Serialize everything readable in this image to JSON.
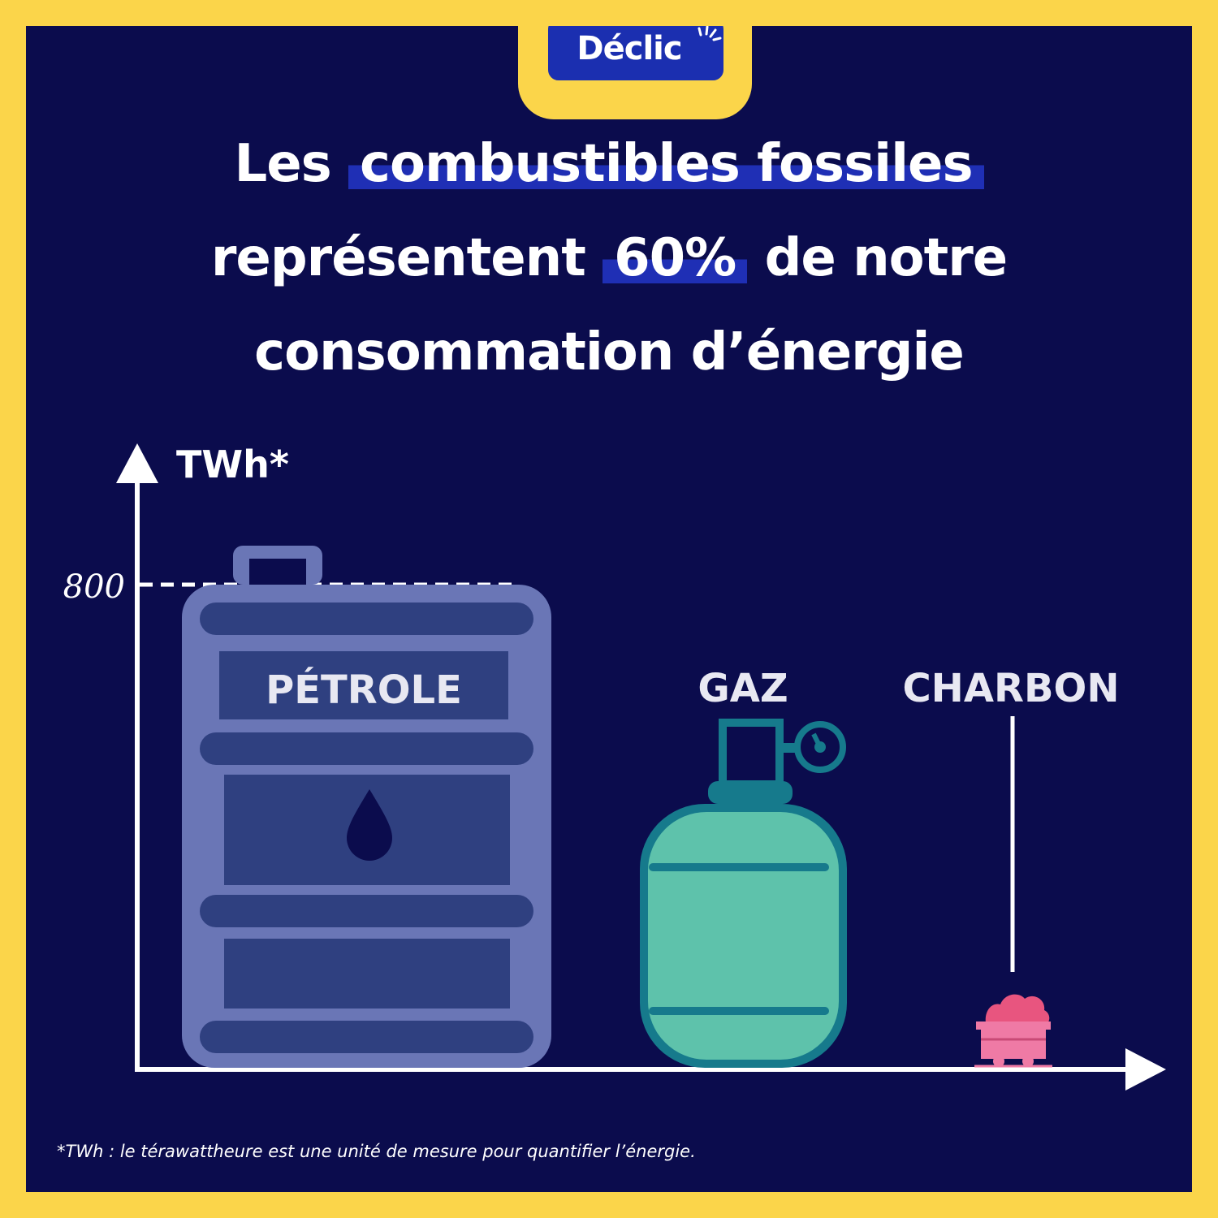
{
  "brand": {
    "name": "Déclic"
  },
  "title": {
    "part1": "Les ",
    "highlight1": "combustibles fossiles",
    "part2": "représentent ",
    "highlight2": "60%",
    "part3": " de notre",
    "part4": "consommation d’énergie"
  },
  "chart_data": {
    "type": "bar",
    "ylabel": "TWh*",
    "reference_line": {
      "value": 800,
      "label": "800",
      "style": "dashed"
    },
    "categories": [
      "PÉTROLE",
      "GAZ",
      "CHARBON"
    ],
    "values": [
      800,
      550,
      40
    ],
    "ylim": [
      0,
      1050
    ],
    "grid": false,
    "colors": {
      "PÉTROLE": "#6a76b6",
      "GAZ": "#5ec2ab",
      "CHARBON": "#ef7aa5"
    }
  },
  "footnote": "*TWh : le térawattheure est une unité de mesure pour quantifier l’énergie."
}
